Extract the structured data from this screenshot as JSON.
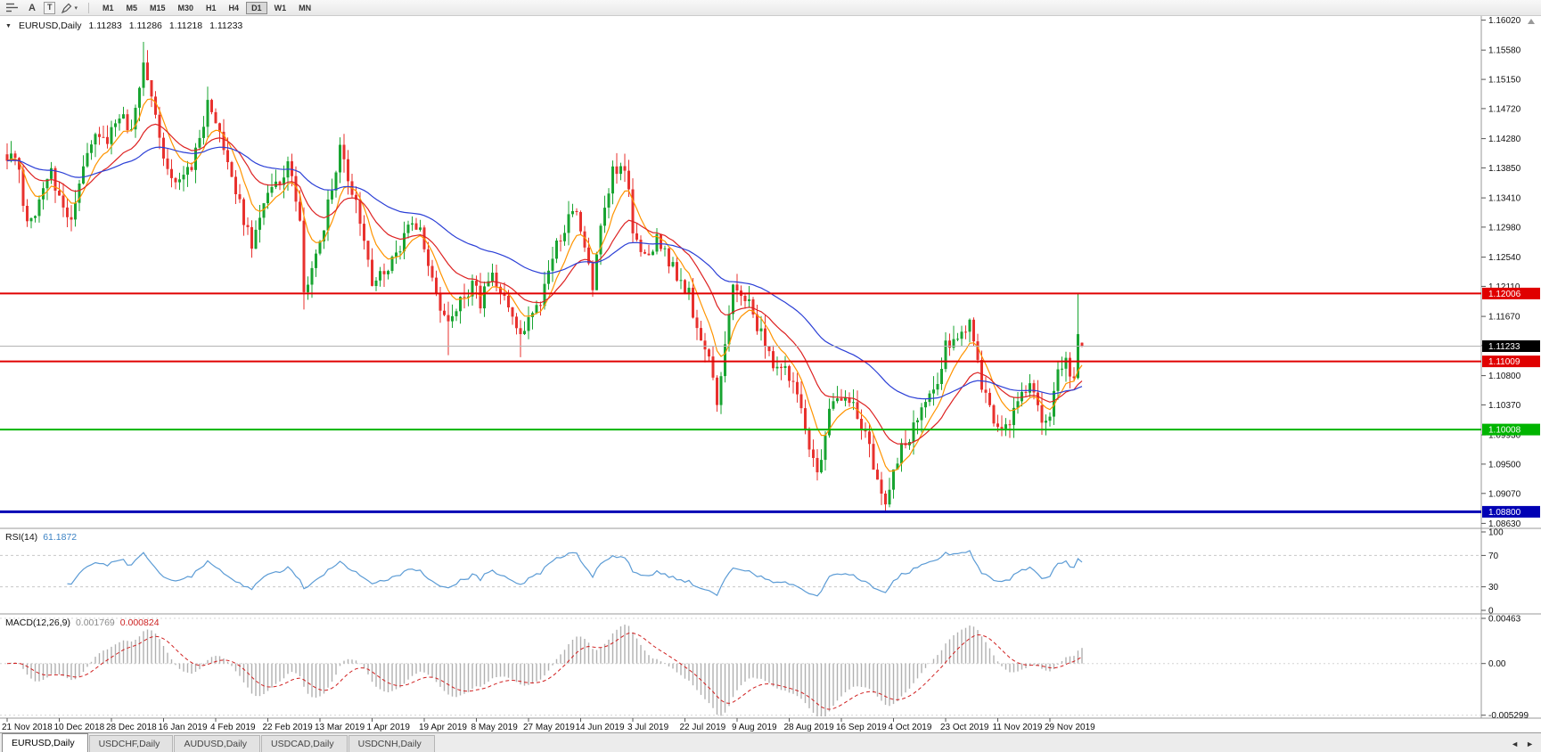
{
  "icons": {
    "collapse_arrow": "▼",
    "chevron_down": "▾",
    "axis_scroll_up": "▲"
  },
  "toolbar": {
    "buttons": [
      "A",
      "T"
    ],
    "timeframes": [
      "M1",
      "M5",
      "M15",
      "M30",
      "H1",
      "H4",
      "D1",
      "W1",
      "MN"
    ],
    "active_timeframe": "D1"
  },
  "chart": {
    "symbol_label": "EURUSD,Daily",
    "ohlc": {
      "open": "1.11283",
      "high": "1.11286",
      "low": "1.11218",
      "close": "1.11233"
    },
    "price_axis_ticks": [
      "1.16020",
      "1.15580",
      "1.15150",
      "1.14720",
      "1.14280",
      "1.13850",
      "1.13410",
      "1.12980",
      "1.12540",
      "1.12110",
      "1.11670",
      "1.11240",
      "1.10800",
      "1.10370",
      "1.09930",
      "1.09500",
      "1.09070",
      "1.08630"
    ],
    "hlines": [
      {
        "price": 1.12006,
        "label": "1.12006",
        "color": "#e00000",
        "width": 2
      },
      {
        "price": 1.11009,
        "label": "1.11009",
        "color": "#e00000",
        "width": 2
      },
      {
        "price": 1.10008,
        "label": "1.10008",
        "color": "#00b400",
        "width": 2
      },
      {
        "price": 1.088,
        "label": "1.08800",
        "color": "#0000b4",
        "width": 3
      }
    ],
    "bid_line": {
      "price": 1.11233,
      "label": "1.11233",
      "tag_color": "#000000",
      "line_color": "#b4b4b4"
    }
  },
  "chart_data": {
    "type": "candlestick",
    "symbol": "EURUSD",
    "timeframe": "Daily",
    "y_range": [
      1.0857,
      1.1608
    ],
    "x_labels": [
      "21 Nov 2018",
      "10 Dec 2018",
      "28 Dec 2018",
      "16 Jan 2019",
      "4 Feb 2019",
      "22 Feb 2019",
      "13 Mar 2019",
      "1 Apr 2019",
      "19 Apr 2019",
      "8 May 2019",
      "27 May 2019",
      "14 Jun 2019",
      "3 Jul 2019",
      "22 Jul 2019",
      "9 Aug 2019",
      "28 Aug 2019",
      "16 Sep 2019",
      "4 Oct 2019",
      "23 Oct 2019",
      "11 Nov 2019",
      "29 Nov 2019"
    ],
    "candles_per_label": 13,
    "candle_count": 269,
    "up_color": "#18a431",
    "down_color": "#e8312e",
    "price_anchors": [
      [
        0,
        1.1405
      ],
      [
        3,
        1.1385
      ],
      [
        5,
        1.1295
      ],
      [
        8,
        1.134
      ],
      [
        11,
        1.1375
      ],
      [
        13,
        1.135
      ],
      [
        16,
        1.13
      ],
      [
        19,
        1.138
      ],
      [
        22,
        1.144
      ],
      [
        25,
        1.143
      ],
      [
        28,
        1.146
      ],
      [
        31,
        1.144
      ],
      [
        34,
        1.154
      ],
      [
        36,
        1.15
      ],
      [
        39,
        1.141
      ],
      [
        42,
        1.136
      ],
      [
        45,
        1.138
      ],
      [
        48,
        1.142
      ],
      [
        50,
        1.149
      ],
      [
        52,
        1.1445
      ],
      [
        55,
        1.139
      ],
      [
        58,
        1.133
      ],
      [
        61,
        1.127
      ],
      [
        64,
        1.133
      ],
      [
        67,
        1.136
      ],
      [
        70,
        1.139
      ],
      [
        73,
        1.131
      ],
      [
        74,
        1.12
      ],
      [
        77,
        1.125
      ],
      [
        80,
        1.133
      ],
      [
        83,
        1.142
      ],
      [
        86,
        1.135
      ],
      [
        89,
        1.129
      ],
      [
        91,
        1.122
      ],
      [
        94,
        1.123
      ],
      [
        97,
        1.126
      ],
      [
        100,
        1.129
      ],
      [
        103,
        1.13
      ],
      [
        105,
        1.124
      ],
      [
        107,
        1.119
      ],
      [
        110,
        1.115
      ],
      [
        113,
        1.12
      ],
      [
        116,
        1.121
      ],
      [
        118,
        1.119
      ],
      [
        120,
        1.123
      ],
      [
        123,
        1.12
      ],
      [
        126,
        1.116
      ],
      [
        128,
        1.113
      ],
      [
        130,
        1.117
      ],
      [
        133,
        1.119
      ],
      [
        136,
        1.125
      ],
      [
        139,
        1.13
      ],
      [
        142,
        1.133
      ],
      [
        144,
        1.127
      ],
      [
        146,
        1.121
      ],
      [
        148,
        1.129
      ],
      [
        151,
        1.138
      ],
      [
        154,
        1.139
      ],
      [
        156,
        1.13
      ],
      [
        159,
        1.126
      ],
      [
        162,
        1.128
      ],
      [
        165,
        1.125
      ],
      [
        168,
        1.122
      ],
      [
        170,
        1.12
      ],
      [
        172,
        1.114
      ],
      [
        175,
        1.111
      ],
      [
        177,
        1.104
      ],
      [
        179,
        1.112
      ],
      [
        181,
        1.121
      ],
      [
        184,
        1.12
      ],
      [
        186,
        1.117
      ],
      [
        188,
        1.114
      ],
      [
        191,
        1.11
      ],
      [
        194,
        1.109
      ],
      [
        197,
        1.106
      ],
      [
        199,
        1.099
      ],
      [
        202,
        1.0935
      ],
      [
        205,
        1.103
      ],
      [
        208,
        1.105
      ],
      [
        211,
        1.104
      ],
      [
        214,
        1.099
      ],
      [
        217,
        1.093
      ],
      [
        219,
        1.09
      ],
      [
        222,
        1.096
      ],
      [
        225,
        1.099
      ],
      [
        228,
        1.103
      ],
      [
        231,
        1.105
      ],
      [
        234,
        1.112
      ],
      [
        237,
        1.113
      ],
      [
        240,
        1.116
      ],
      [
        243,
        1.107
      ],
      [
        246,
        1.102
      ],
      [
        249,
        1.1
      ],
      [
        252,
        1.105
      ],
      [
        255,
        1.107
      ],
      [
        258,
        1.101
      ],
      [
        260,
        1.102
      ],
      [
        262,
        1.108
      ],
      [
        264,
        1.11
      ],
      [
        266,
        1.107
      ],
      [
        267,
        1.114
      ],
      [
        268,
        1.11233
      ]
    ],
    "wick_overrides": {
      "34": [
        1.157,
        null
      ],
      "74": [
        null,
        1.1177
      ],
      "110": [
        null,
        1.111
      ],
      "128": [
        null,
        1.1107
      ],
      "177": [
        null,
        1.1027
      ],
      "202": [
        null,
        1.0926
      ],
      "219": [
        null,
        1.0879
      ],
      "267": [
        1.12,
        null
      ]
    },
    "clamp": [
      1.0878,
      1.1572
    ],
    "current_bar": {
      "open": 1.11283,
      "high": 1.11286,
      "low": 1.11218,
      "close": 1.11233
    },
    "moving_averages": [
      {
        "period": 8,
        "color": "#ff9400",
        "name": "fast-ma"
      },
      {
        "period": 21,
        "color": "#dd2222",
        "name": "medium-ma"
      },
      {
        "period": 55,
        "color": "#2b3fd6",
        "name": "slow-ma"
      }
    ]
  },
  "rsi": {
    "name": "RSI(14)",
    "value": "61.1872",
    "period": 14,
    "axis_ticks": [
      "100",
      "70",
      "30",
      "0"
    ],
    "axis_values": [
      100,
      70,
      30,
      0
    ],
    "levels": [
      70,
      30
    ],
    "line_color": "#5b9bd5"
  },
  "macd": {
    "name": "MACD(12,26,9)",
    "main_value": "0.001769",
    "signal_value": "0.000824",
    "axis_ticks": [
      "0.00463",
      "0.00",
      "-0.005299"
    ],
    "axis_values": [
      0.00463,
      0,
      -0.005299
    ],
    "range": [
      -0.0056,
      0.005
    ],
    "histogram_color": "#b0b0b0",
    "signal_color": "#d02020"
  },
  "tabs": {
    "items": [
      "EURUSD,Daily",
      "USDCHF,Daily",
      "AUDUSD,Daily",
      "USDCAD,Daily",
      "USDCNH,Daily"
    ],
    "active_index": 0,
    "scroll_left": "◄",
    "scroll_right": "►"
  }
}
